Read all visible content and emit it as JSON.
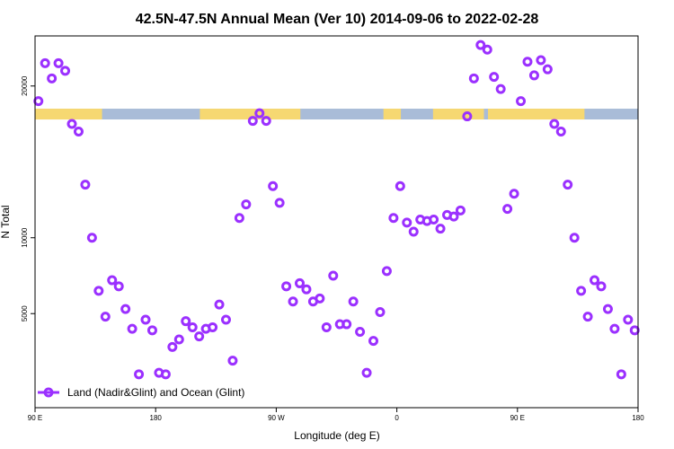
{
  "chart_data": {
    "type": "scatter",
    "title": "42.5N-47.5N Annual Mean (Ver 10)   2014-09-06 to 2022-02-28",
    "xlabel": "Longitude (deg E)",
    "ylabel": "N Total",
    "x_tick_labels": [
      "90 E",
      "180",
      "90 W",
      "0",
      "90 E",
      "180"
    ],
    "y_tick_labels": [
      "5000",
      "10000",
      "20000"
    ],
    "x_range_note": "longitude axis spans 90 E eastward through 180, 90 W, 0, 90 E to 180 (450 degrees)",
    "xlim": [
      90,
      540
    ],
    "ylim": [
      -1200,
      23300
    ],
    "y_scale": "linear",
    "grid": false,
    "legend": {
      "position": "bottom-left",
      "entries": [
        "Land (Nadir&Glint) and Ocean (Glint)"
      ]
    },
    "series_color": "#9b30ff",
    "marker": "hollow-circle",
    "land_band": {
      "y_center": 18150,
      "land_color": "#f6d872",
      "ocean_color": "#a9bcd8"
    },
    "series": [
      {
        "name": "Land (Nadir&Glint) and Ocean (Glint)",
        "x": [
          92.5,
          97.5,
          102.5,
          107.5,
          112.5,
          117.5,
          122.5,
          127.5,
          132.5,
          137.5,
          142.5,
          147.5,
          152.5,
          157.5,
          162.5,
          167.5,
          172.5,
          177.5,
          182.5,
          187.5,
          192.5,
          197.5,
          202.5,
          207.5,
          212.5,
          217.5,
          222.5,
          227.5,
          232.5,
          237.5,
          242.5,
          247.5,
          252.5,
          257.5,
          262.5,
          267.5,
          272.5,
          277.5,
          282.5,
          287.5,
          292.5,
          297.5,
          302.5,
          307.5,
          312.5,
          317.5,
          322.5,
          327.5,
          332.5,
          337.5,
          342.5,
          347.5,
          352.5,
          357.5,
          362.5,
          367.5,
          372.5,
          377.5,
          382.5,
          387.5,
          392.5,
          397.5,
          402.5,
          407.5,
          412.5,
          417.5,
          422.5,
          427.5,
          432.5,
          437.5,
          442.5,
          447.5,
          452.5,
          457.5,
          462.5,
          467.5,
          472.5,
          477.5,
          482.5,
          487.5,
          492.5,
          497.5,
          502.5,
          507.5,
          512.5,
          517.5,
          522.5,
          527.5,
          532.5,
          537.5
        ],
        "y": [
          19000,
          21500,
          20500,
          21500,
          21000,
          17500,
          17000,
          13500,
          10000,
          6500,
          4800,
          7200,
          6800,
          5300,
          4000,
          1000,
          4600,
          3900,
          1100,
          1000,
          2800,
          3300,
          4500,
          4100,
          3500,
          4000,
          4100,
          5600,
          4600,
          1900,
          11300,
          12200,
          17700,
          18200,
          17700,
          13400,
          12300,
          6800,
          5800,
          7000,
          6600,
          5800,
          6000,
          4100,
          7500,
          4300,
          4300,
          5800,
          3800,
          1100,
          3200,
          5100,
          7800,
          11300,
          13400,
          11000,
          10400,
          11200,
          11100,
          11200,
          10600,
          11500,
          11400,
          11800,
          18000,
          20500,
          22700,
          22400,
          20600,
          19800,
          11900,
          12900,
          19000,
          21600,
          20700,
          21700,
          21100,
          17500,
          17000,
          13500,
          10000,
          6500,
          4800,
          7200,
          6800,
          5300,
          4000,
          1000,
          4600,
          3900
        ]
      }
    ]
  }
}
